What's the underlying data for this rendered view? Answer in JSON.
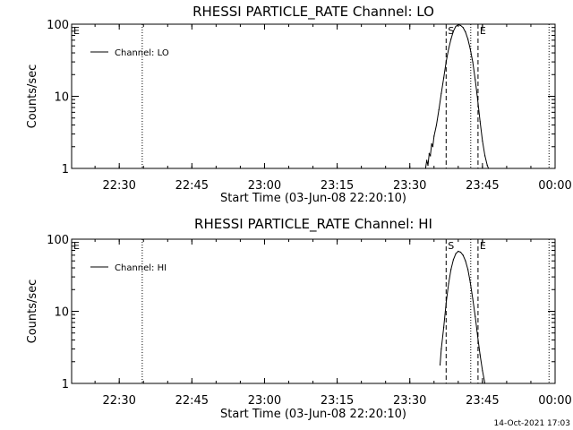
{
  "stamp": "14-Oct-2021 17:03",
  "chart_data": [
    {
      "type": "line",
      "title": "RHESSI PARTICLE_RATE Channel: LO",
      "xlabel": "Start Time (03-Jun-08 22:20:10)",
      "ylabel": "Counts/sec",
      "xlim": [
        "22:20:10",
        "00:00:00"
      ],
      "ylim": [
        1,
        100
      ],
      "yscale": "log",
      "x_ticks": [
        "22:30",
        "22:45",
        "23:00",
        "23:15",
        "23:30",
        "23:45",
        "00:00"
      ],
      "y_ticks": [
        "1",
        "10",
        "100"
      ],
      "legend": {
        "position": "top-left",
        "entries": [
          "Channel: LO"
        ]
      },
      "series": [
        {
          "name": "Channel: LO",
          "x": [
            "23:33:15",
            "23:33:30",
            "23:33:45",
            "23:34:00",
            "23:34:15",
            "23:34:30",
            "23:34:45",
            "23:35:00",
            "23:35:30",
            "23:36:00",
            "23:36:30",
            "23:37:00",
            "23:37:30",
            "23:38:00",
            "23:38:30",
            "23:39:00",
            "23:39:30",
            "23:40:00",
            "23:40:30",
            "23:41:00",
            "23:41:30",
            "23:42:00",
            "23:42:30",
            "23:43:00",
            "23:43:30",
            "23:44:00",
            "23:44:30",
            "23:45:00",
            "23:45:30",
            "23:46:00",
            "23:46:15"
          ],
          "y": [
            1.0,
            1.3,
            1.1,
            1.6,
            1.5,
            2.2,
            2.0,
            2.8,
            4.0,
            6.5,
            11,
            18,
            30,
            45,
            62,
            80,
            93,
            98,
            96,
            90,
            78,
            62,
            45,
            30,
            17,
            9,
            4.5,
            2.4,
            1.5,
            1.1,
            1.0
          ]
        }
      ],
      "markers": [
        {
          "label": "E",
          "time": "22:20:10",
          "style": "boundary"
        },
        {
          "label": "",
          "time": "22:34:45",
          "style": "dotted"
        },
        {
          "label": "S",
          "time": "23:37:30",
          "style": "dashed"
        },
        {
          "label": "",
          "time": "23:42:35",
          "style": "dotted"
        },
        {
          "label": "E",
          "time": "23:44:05",
          "style": "dashed"
        },
        {
          "label": "",
          "time": "23:58:45",
          "style": "dotted"
        }
      ]
    },
    {
      "type": "line",
      "title": "RHESSI PARTICLE_RATE Channel: HI",
      "xlabel": "Start Time (03-Jun-08 22:20:10)",
      "ylabel": "Counts/sec",
      "xlim": [
        "22:20:10",
        "00:00:00"
      ],
      "ylim": [
        1,
        100
      ],
      "yscale": "log",
      "x_ticks": [
        "22:30",
        "22:45",
        "23:00",
        "23:15",
        "23:30",
        "23:45",
        "00:00"
      ],
      "y_ticks": [
        "1",
        "10",
        "100"
      ],
      "legend": {
        "position": "top-left",
        "entries": [
          "Channel: HI"
        ]
      },
      "series": [
        {
          "name": "Channel: HI",
          "x": [
            "23:36:15",
            "23:36:30",
            "23:37:00",
            "23:37:30",
            "23:38:00",
            "23:38:30",
            "23:39:00",
            "23:39:30",
            "23:40:00",
            "23:40:30",
            "23:41:00",
            "23:41:30",
            "23:42:00",
            "23:42:30",
            "23:43:00",
            "23:43:30",
            "23:44:00",
            "23:44:30",
            "23:45:00",
            "23:45:30"
          ],
          "y": [
            1.8,
            3.0,
            6.0,
            13,
            24,
            38,
            52,
            63,
            68,
            66,
            60,
            50,
            38,
            25,
            15,
            8.5,
            4.5,
            2.5,
            1.5,
            1.0
          ]
        }
      ],
      "markers": [
        {
          "label": "E",
          "time": "22:20:10",
          "style": "boundary"
        },
        {
          "label": "",
          "time": "22:34:45",
          "style": "dotted"
        },
        {
          "label": "S",
          "time": "23:37:30",
          "style": "dashed"
        },
        {
          "label": "",
          "time": "23:42:35",
          "style": "dotted"
        },
        {
          "label": "E",
          "time": "23:44:05",
          "style": "dashed"
        },
        {
          "label": "",
          "time": "23:58:45",
          "style": "dotted"
        }
      ]
    }
  ]
}
